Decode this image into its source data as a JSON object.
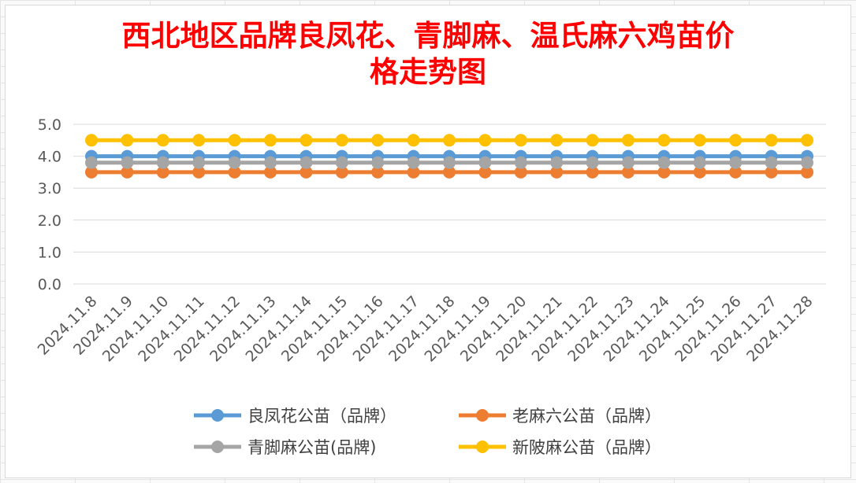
{
  "chart_data": {
    "type": "line",
    "title_lines": [
      "西北地区品牌良凤花、青脚麻、温氏麻六鸡苗价",
      "格走势图"
    ],
    "categories": [
      "2024.11.8",
      "2024.11.9",
      "2024.11.10",
      "2024.11.11",
      "2024.11.12",
      "2024.11.13",
      "2024.11.14",
      "2024.11.15",
      "2024.11.16",
      "2024.11.17",
      "2024.11.18",
      "2024.11.19",
      "2024.11.20",
      "2024.11.21",
      "2024.11.22",
      "2024.11.23",
      "2024.11.24",
      "2024.11.25",
      "2024.11.26",
      "2024.11.27",
      "2024.11.28"
    ],
    "ylim": [
      0,
      5
    ],
    "yticks": [
      "0.0",
      "1.0",
      "2.0",
      "3.0",
      "4.0",
      "5.0"
    ],
    "grid": true,
    "legend_position": "bottom",
    "series": [
      {
        "name": "良凤花公苗（品牌）",
        "color": "#5b9bd5",
        "values": [
          4,
          4,
          4,
          4,
          4,
          4,
          4,
          4,
          4,
          4,
          4,
          4,
          4,
          4,
          4,
          4,
          4,
          4,
          4,
          4,
          4
        ]
      },
      {
        "name": "老麻六公苗（品牌）",
        "color": "#ed7d31",
        "values": [
          3.5,
          3.5,
          3.5,
          3.5,
          3.5,
          3.5,
          3.5,
          3.5,
          3.5,
          3.5,
          3.5,
          3.5,
          3.5,
          3.5,
          3.5,
          3.5,
          3.5,
          3.5,
          3.5,
          3.5,
          3.5
        ]
      },
      {
        "name": "青脚麻公苗(品牌)",
        "color": "#a5a5a5",
        "values": [
          3.8,
          3.8,
          3.8,
          3.8,
          3.8,
          3.8,
          3.8,
          3.8,
          3.8,
          3.8,
          3.8,
          3.8,
          3.8,
          3.8,
          3.8,
          3.8,
          3.8,
          3.8,
          3.8,
          3.8,
          3.8
        ]
      },
      {
        "name": "新陂麻公苗（品牌）",
        "color": "#ffc000",
        "values": [
          4.5,
          4.5,
          4.5,
          4.5,
          4.5,
          4.5,
          4.5,
          4.5,
          4.5,
          4.5,
          4.5,
          4.5,
          4.5,
          4.5,
          4.5,
          4.5,
          4.5,
          4.5,
          4.5,
          4.5,
          4.5
        ]
      }
    ],
    "legend_rows": [
      [
        0,
        1
      ],
      [
        2,
        3
      ]
    ]
  }
}
